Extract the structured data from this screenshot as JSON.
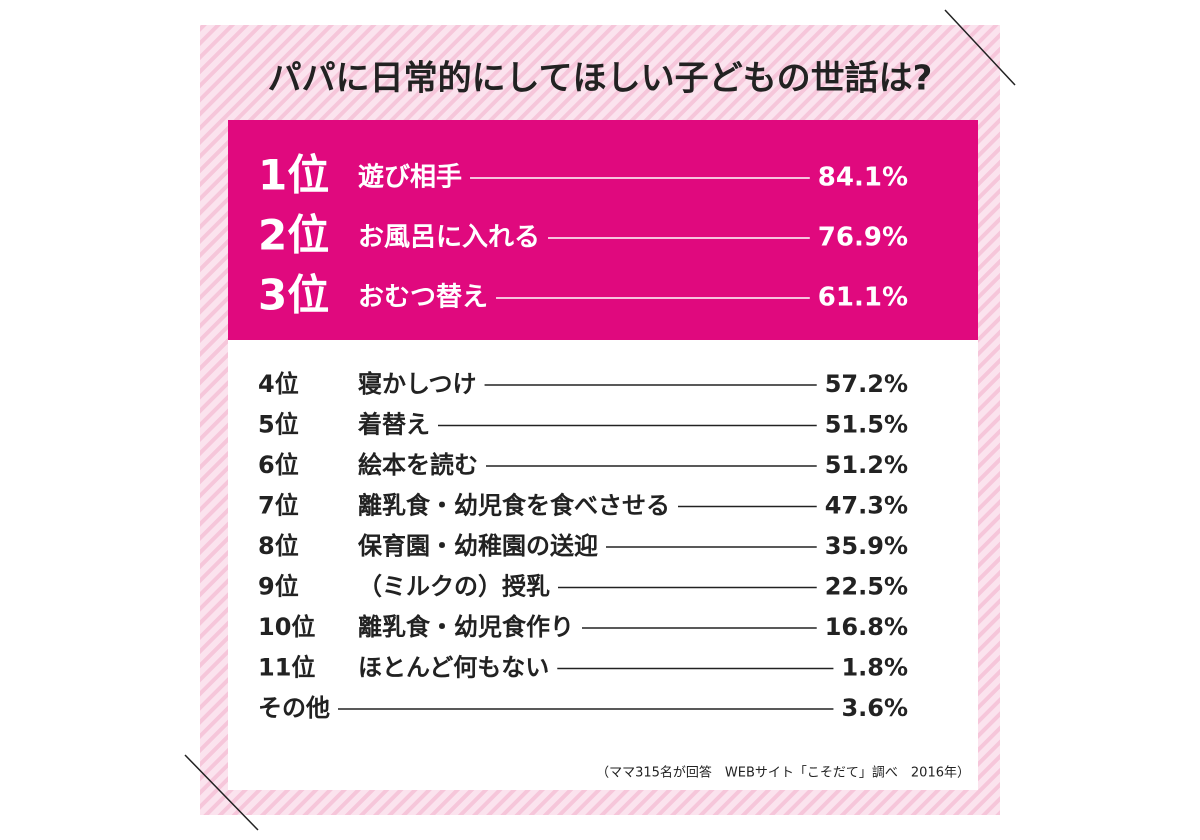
{
  "title": "パパに日常的にしてほしい子どもの世話は?",
  "top_ranks": [
    {
      "rank": "1位",
      "item": "遊び相手",
      "value": "84.1%"
    },
    {
      "rank": "2位",
      "item": "お風呂に入れる",
      "value": "76.9%"
    },
    {
      "rank": "3位",
      "item": "おむつ替え",
      "value": "61.1%"
    }
  ],
  "ranks": [
    {
      "rank": "4位",
      "item": "寝かしつけ",
      "value": "57.2%"
    },
    {
      "rank": "5位",
      "item": "着替え",
      "value": "51.5%"
    },
    {
      "rank": "6位",
      "item": "絵本を読む",
      "value": "51.2%"
    },
    {
      "rank": "7位",
      "item": "離乳食・幼児食を食べさせる",
      "value": "47.3%"
    },
    {
      "rank": "8位",
      "item": "保育園・幼稚園の送迎",
      "value": "35.9%"
    },
    {
      "rank": "9位",
      "item": "（ミルクの）授乳",
      "value": "22.5%"
    },
    {
      "rank": "10位",
      "item": "離乳食・幼児食作り",
      "value": "16.8%"
    },
    {
      "rank": "11位",
      "item": "ほとんど何もない",
      "value": "1.8%"
    },
    {
      "rank": "その他",
      "value": "3.6%"
    }
  ],
  "note": "（ママ315名が回答　WEBサイト「こそだて」調べ　2016年）"
}
